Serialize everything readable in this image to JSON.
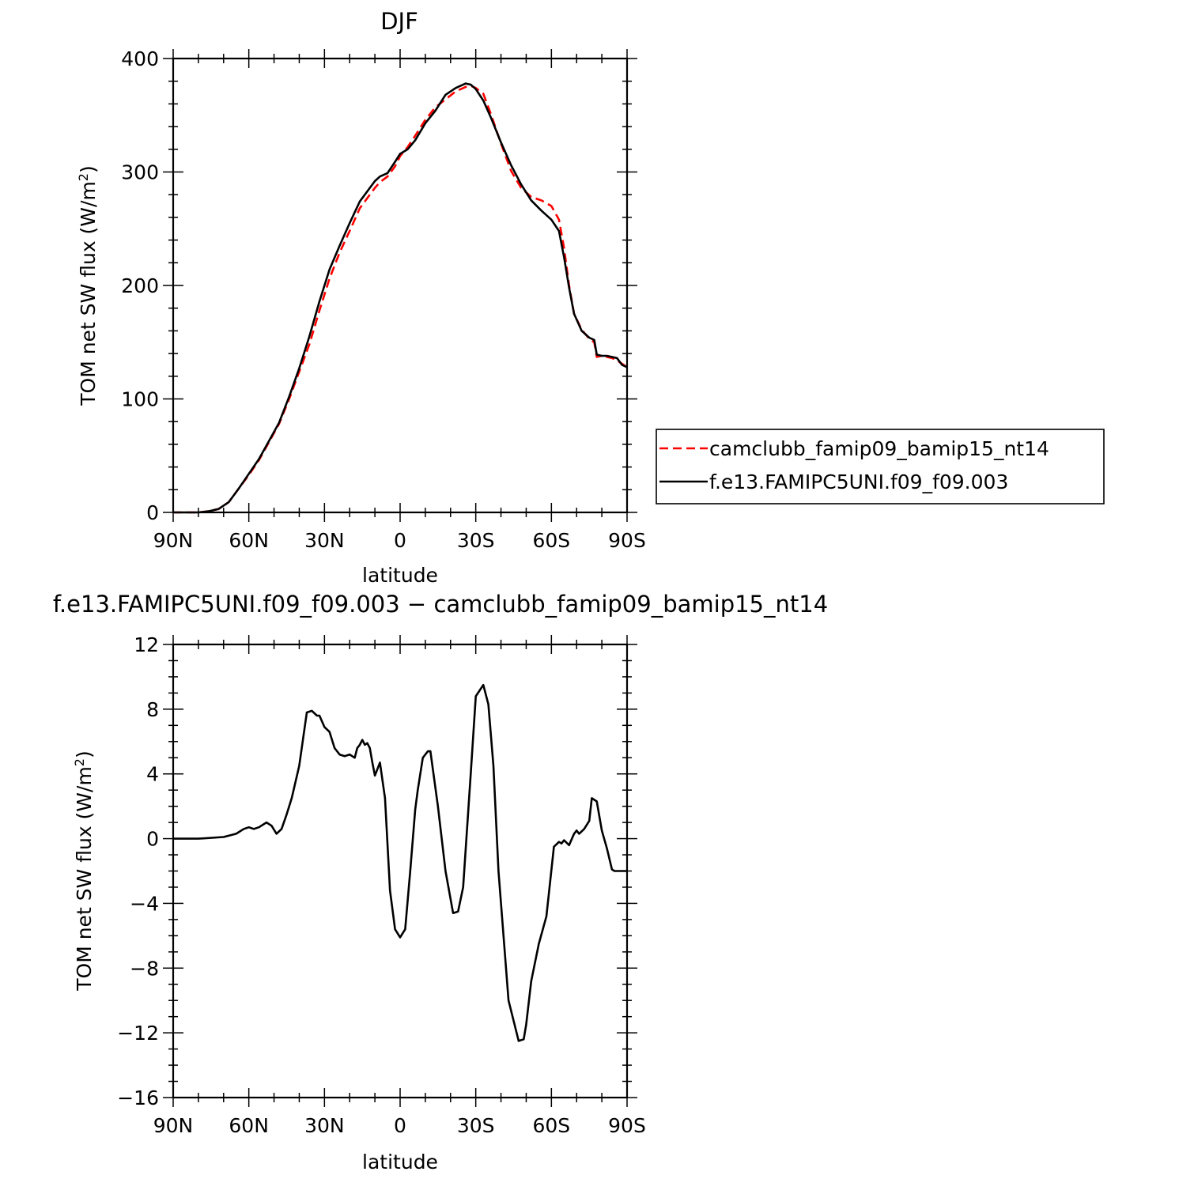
{
  "chart_data": [
    {
      "type": "line",
      "title": "DJF",
      "xlabel": "latitude",
      "ylabel": "TOM net SW flux (W/m",
      "ylabel_sup": "2",
      "ylabel_end": ")",
      "xlim": [
        90,
        -90
      ],
      "ylim": [
        0,
        400
      ],
      "xtick_values": [
        90,
        60,
        30,
        0,
        -30,
        -60,
        -90
      ],
      "xtick_labels": [
        "90N",
        "60N",
        "30N",
        "0",
        "30S",
        "60S",
        "90S"
      ],
      "ytick_values": [
        0,
        100,
        200,
        300,
        400
      ],
      "ytick_labels": [
        "0",
        "100",
        "200",
        "300",
        "400"
      ],
      "legend_position": "right",
      "series": [
        {
          "name": "camclubb_famip09_bamip15_nt14",
          "color": "#ff0000",
          "dash": "dashed",
          "x": [
            90,
            85,
            80,
            76,
            72,
            68,
            64,
            60,
            56,
            52,
            48,
            44,
            40,
            36,
            32,
            28,
            24,
            20,
            16,
            12,
            10,
            8,
            5,
            2,
            0,
            -3,
            -6,
            -10,
            -14,
            -18,
            -22,
            -26,
            -28,
            -30,
            -33,
            -36,
            -40,
            -44,
            -48,
            -52,
            -56,
            -60,
            -63,
            -65,
            -67,
            -69,
            -72,
            -75,
            -77,
            -78,
            -80,
            -82,
            -84,
            -86,
            -88,
            -90
          ],
          "y": [
            0,
            0,
            0,
            1,
            3,
            9,
            21,
            33,
            46,
            62,
            78,
            100,
            124,
            148,
            178,
            206,
            229,
            248,
            268,
            280,
            286,
            291,
            296,
            305,
            314,
            322,
            332,
            346,
            357,
            364,
            371,
            375,
            376,
            374,
            369,
            351,
            325,
            301,
            286,
            278,
            275,
            270,
            258,
            233,
            200,
            175,
            161,
            153,
            150,
            137,
            138,
            137,
            136,
            134,
            131,
            128
          ]
        },
        {
          "name": "f.e13.FAMIPC5UNI.f09_f09.003",
          "color": "#000000",
          "dash": "solid",
          "x": [
            90,
            85,
            80,
            76,
            72,
            68,
            64,
            60,
            56,
            52,
            48,
            44,
            40,
            36,
            32,
            28,
            24,
            20,
            16,
            12,
            10,
            8,
            5,
            2,
            0,
            -3,
            -6,
            -10,
            -14,
            -18,
            -22,
            -26,
            -28,
            -30,
            -33,
            -36,
            -40,
            -44,
            -48,
            -52,
            -56,
            -60,
            -63,
            -65,
            -67,
            -69,
            -72,
            -75,
            -77,
            -78,
            -80,
            -82,
            -84,
            -86,
            -88,
            -90
          ],
          "y": [
            0,
            0,
            0,
            1,
            3,
            9,
            21,
            34,
            47,
            63,
            79,
            102,
            127,
            155,
            186,
            214,
            235,
            255,
            274,
            286,
            292,
            296,
            299,
            309,
            316,
            320,
            328,
            343,
            354,
            368,
            374,
            378,
            377,
            373,
            363,
            348,
            326,
            306,
            289,
            275,
            266,
            258,
            248,
            225,
            198,
            175,
            160,
            154,
            152,
            139,
            138,
            138,
            137,
            136,
            130,
            128
          ]
        }
      ]
    },
    {
      "type": "line",
      "title": "f.e13.FAMIPC5UNI.f09_f09.003 − camclubb_famip09_bamip15_nt14",
      "xlabel": "latitude",
      "ylabel": "TOM net SW flux (W/m",
      "ylabel_sup": "2",
      "ylabel_end": ")",
      "xlim": [
        90,
        -90
      ],
      "ylim": [
        -16,
        12
      ],
      "xtick_values": [
        90,
        60,
        30,
        0,
        -30,
        -60,
        -90
      ],
      "xtick_labels": [
        "90N",
        "60N",
        "30N",
        "0",
        "30S",
        "60S",
        "90S"
      ],
      "ytick_values": [
        -16,
        -12,
        -8,
        -4,
        0,
        4,
        8,
        12
      ],
      "ytick_labels": [
        "−16",
        "−12",
        "−8",
        "−4",
        "0",
        "4",
        "8",
        "12"
      ],
      "series": [
        {
          "name": "",
          "color": "#000000",
          "dash": "solid",
          "x": [
            90,
            80,
            70,
            65,
            62,
            60,
            58,
            56,
            53,
            51,
            49,
            47,
            45,
            43,
            40,
            37,
            35,
            33,
            32,
            30,
            28,
            26,
            24,
            22,
            20,
            18,
            17,
            16,
            15,
            14,
            13,
            12,
            11,
            10,
            8,
            6,
            4,
            2,
            0,
            -2,
            -4,
            -6,
            -7,
            -9,
            -10,
            -11,
            -12,
            -15,
            -18,
            -21,
            -23,
            -25,
            -28,
            -30,
            -33,
            -35,
            -37,
            -39,
            -43,
            -47,
            -49,
            -50,
            -52,
            -55,
            -58,
            -61,
            -63,
            -64,
            -65,
            -67,
            -69,
            -70,
            -71,
            -73,
            -75,
            -76,
            -78,
            -80,
            -82,
            -84,
            -85,
            -86,
            -88,
            -90
          ],
          "y": [
            0,
            0,
            0.1,
            0.3,
            0.6,
            0.7,
            0.6,
            0.7,
            1.0,
            0.8,
            0.3,
            0.6,
            1.5,
            2.5,
            4.5,
            7.8,
            7.9,
            7.6,
            7.6,
            6.9,
            6.6,
            5.6,
            5.2,
            5.1,
            5.2,
            5.0,
            5.6,
            5.8,
            6.1,
            5.8,
            5.9,
            5.6,
            4.7,
            3.9,
            4.7,
            2.5,
            -3.2,
            -5.6,
            -6.1,
            -5.6,
            -2.0,
            1.8,
            3.0,
            5.0,
            5.2,
            5.4,
            5.4,
            2.0,
            -2.0,
            -4.6,
            -4.5,
            -3.0,
            4.0,
            8.8,
            9.5,
            8.3,
            4.5,
            -2.0,
            -10.0,
            -12.5,
            -12.4,
            -11.5,
            -8.8,
            -6.5,
            -4.8,
            -0.5,
            -0.2,
            -0.3,
            -0.1,
            -0.4,
            0.3,
            0.5,
            0.3,
            0.6,
            1.1,
            2.5,
            2.3,
            0.5,
            -0.6,
            -1.9,
            -2.0,
            -2.0,
            -2.0,
            -2.0
          ]
        }
      ]
    }
  ]
}
